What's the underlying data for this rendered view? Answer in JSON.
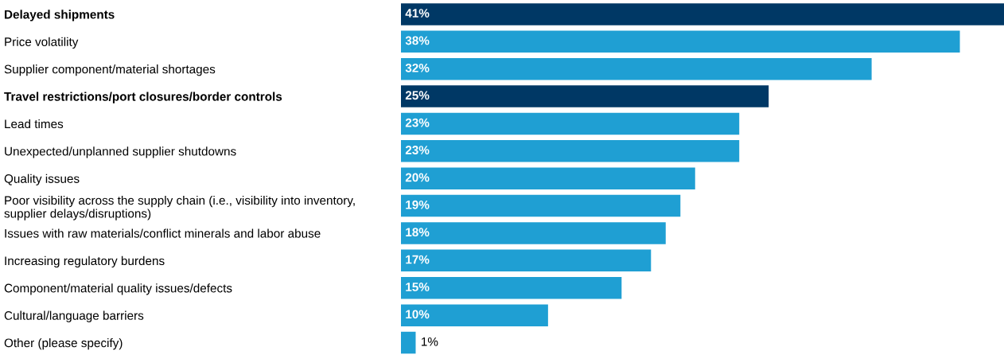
{
  "chart_data": {
    "type": "bar",
    "orientation": "horizontal",
    "categories": [
      "Delayed shipments",
      "Price volatility",
      "Supplier component/material shortages",
      "Travel restrictions/port closures/border controls",
      "Lead times",
      "Unexpected/unplanned supplier shutdowns",
      "Quality issues",
      "Poor visibility across the supply chain (i.e., visibility into inventory,\nsupplier delays/disruptions)",
      "Issues with raw materials/conflict minerals and labor abuse",
      "Increasing regulatory burdens",
      "Component/material quality issues/defects",
      "Cultural/language barriers",
      "Other (please specify)"
    ],
    "values": [
      41,
      38,
      32,
      25,
      23,
      23,
      20,
      19,
      18,
      17,
      15,
      10,
      1
    ],
    "value_labels": [
      "41%",
      "38%",
      "32%",
      "25%",
      "23%",
      "23%",
      "20%",
      "19%",
      "18%",
      "17%",
      "15%",
      "10%",
      "1%"
    ],
    "colors": [
      "#003865",
      "#1f9fd3",
      "#1f9fd3",
      "#003865",
      "#1f9fd3",
      "#1f9fd3",
      "#1f9fd3",
      "#1f9fd3",
      "#1f9fd3",
      "#1f9fd3",
      "#1f9fd3",
      "#1f9fd3",
      "#1f9fd3"
    ],
    "xlim": [
      0,
      41
    ],
    "tick_labels": "y",
    "grid": false,
    "legend": false
  }
}
